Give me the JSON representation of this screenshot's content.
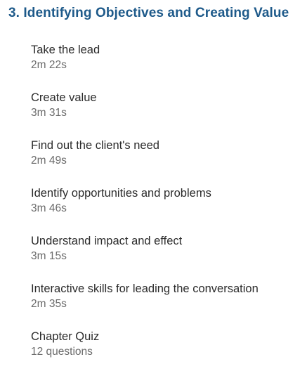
{
  "chapter": {
    "title": "3. Identifying Objectives and Creating Value"
  },
  "lessons": [
    {
      "title": "Take the lead",
      "meta": "2m 22s"
    },
    {
      "title": "Create value",
      "meta": "3m 31s"
    },
    {
      "title": "Find out the client's need",
      "meta": "2m 49s"
    },
    {
      "title": "Identify opportunities and problems",
      "meta": "3m 46s"
    },
    {
      "title": "Understand impact and effect",
      "meta": "3m 15s"
    },
    {
      "title": "Interactive skills for leading the conversation",
      "meta": "2m 35s"
    },
    {
      "title": "Chapter Quiz",
      "meta": "12 questions"
    }
  ],
  "colors": {
    "chapter_title": "#1e5a8a",
    "lesson_title": "#2b2b2b",
    "lesson_meta": "#6b6b6b"
  }
}
